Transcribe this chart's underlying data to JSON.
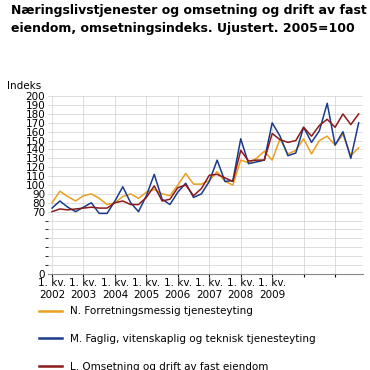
{
  "title_line1": "Næringslivstjenester og omsetning og drift av fast",
  "title_line2": "eiendom, omsetningsindeks. Ujustert. 2005=100",
  "ylabel": "Indeks",
  "ylim": [
    0,
    200
  ],
  "yticks_show": [
    70,
    80,
    90,
    100,
    110,
    120,
    130,
    140,
    150,
    160,
    170,
    180,
    190,
    200
  ],
  "background_color": "#ffffff",
  "grid_color": "#d0d0d0",
  "series": {
    "N": {
      "label": "N. Forretningsmessig tjenesteyting",
      "color": "#e8a020",
      "values": [
        80,
        93,
        87,
        82,
        88,
        90,
        85,
        78,
        80,
        87,
        90,
        85,
        92,
        95,
        90,
        88,
        100,
        113,
        101,
        101,
        105,
        115,
        104,
        100,
        128,
        125,
        130,
        138,
        128,
        152,
        135,
        139,
        152,
        135,
        150,
        155,
        145,
        157,
        133,
        142
      ]
    },
    "M": {
      "label": "M. Faglig, vitenskaplig og teknisk tjenesteyting",
      "color": "#1a3a8a",
      "values": [
        74,
        82,
        75,
        70,
        75,
        80,
        68,
        68,
        82,
        98,
        80,
        70,
        88,
        112,
        84,
        78,
        92,
        102,
        86,
        90,
        104,
        128,
        104,
        105,
        152,
        124,
        126,
        128,
        170,
        155,
        133,
        136,
        165,
        148,
        161,
        192,
        145,
        160,
        130,
        170
      ]
    },
    "L": {
      "label": "L. Omsetning og drift av fast eiendom",
      "color": "#8b1a1a",
      "values": [
        70,
        73,
        72,
        73,
        74,
        75,
        74,
        74,
        80,
        82,
        78,
        78,
        86,
        99,
        82,
        84,
        97,
        100,
        88,
        96,
        111,
        112,
        108,
        104,
        139,
        127,
        128,
        128,
        158,
        151,
        148,
        150,
        165,
        155,
        167,
        174,
        165,
        180,
        168,
        180
      ]
    }
  },
  "x_tick_positions": [
    0,
    4,
    8,
    12,
    16,
    20,
    24,
    28,
    32,
    36
  ],
  "x_tick_labels": [
    "1. kv.\n2002",
    "1. kv.\n2003",
    "1. kv.\n2004",
    "1. kv.\n2005",
    "1. kv.\n2006",
    "1. kv.\n2007",
    "1. kv.\n2008",
    "1. kv.\n2009",
    "",
    ""
  ],
  "n_points": 40,
  "title_fontsize": 9,
  "axis_fontsize": 7.5,
  "legend_fontsize": 7.5
}
